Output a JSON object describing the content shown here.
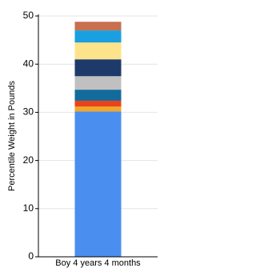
{
  "chart_data": {
    "type": "stacked-bar",
    "y_label": "Percentile Weight in Pounds",
    "categories": [
      "Boy 4 years 4 months"
    ],
    "series": [
      {
        "color": "#4a8ef0",
        "values": [
          30.2
        ]
      },
      {
        "color": "#f5a623",
        "values": [
          1.0
        ]
      },
      {
        "color": "#e8431c",
        "values": [
          1.2
        ]
      },
      {
        "color": "#136b9c",
        "values": [
          2.3
        ]
      },
      {
        "color": "#c0c0c0",
        "values": [
          2.8
        ]
      },
      {
        "color": "#1d3a6a",
        "values": [
          3.5
        ]
      },
      {
        "color": "#fde38a",
        "values": [
          3.5
        ]
      },
      {
        "color": "#1aa0e0",
        "values": [
          2.5
        ]
      },
      {
        "color": "#c8704f",
        "values": [
          1.8
        ]
      }
    ],
    "ylim": [
      0,
      50
    ],
    "yticks": [
      0,
      10,
      20,
      30,
      40,
      50
    ],
    "grid": true
  }
}
